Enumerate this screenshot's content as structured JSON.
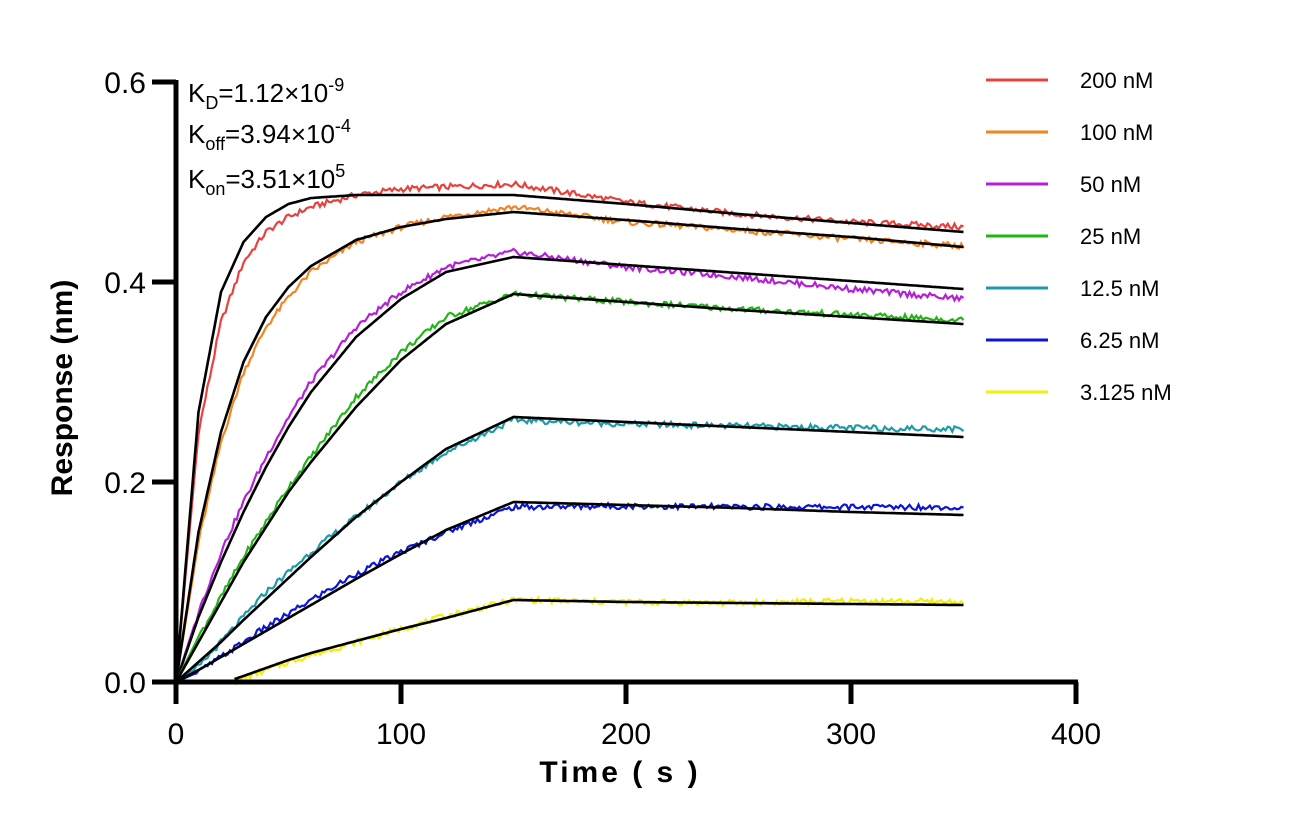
{
  "chart_data": {
    "type": "line",
    "xlabel": "Time ( s )",
    "ylabel": "Response (nm)",
    "xlim": [
      0,
      400
    ],
    "ylim": [
      0,
      0.6
    ],
    "x_ticks": [
      0,
      100,
      200,
      300,
      400
    ],
    "y_ticks": [
      0.0,
      0.2,
      0.4,
      0.6
    ],
    "x_tick_labels": [
      "0",
      "100",
      "200",
      "300",
      "400"
    ],
    "y_tick_labels": [
      "0.0",
      "0.2",
      "0.4",
      "0.6"
    ],
    "grid": false,
    "legend_position": "right",
    "annotations": {
      "kd": {
        "base": "K",
        "sub": "D",
        "value": "=1.12×10",
        "exp": "-9"
      },
      "koff": {
        "base": "K",
        "sub": "off",
        "value": "=3.94×10",
        "exp": "-4"
      },
      "kon": {
        "base": "K",
        "sub": "on",
        "value": "=3.51×10",
        "exp": "5"
      }
    },
    "association_end_s": 150,
    "end_s": 350,
    "fit_line_color": "#000000",
    "series": [
      {
        "name": "200 nM",
        "color": "#e8423f",
        "x": [
          0,
          10,
          20,
          30,
          40,
          50,
          60,
          80,
          100,
          120,
          150,
          200,
          250,
          300,
          350
        ],
        "y": [
          0.0,
          0.25,
          0.36,
          0.42,
          0.45,
          0.465,
          0.475,
          0.487,
          0.493,
          0.495,
          0.498,
          0.48,
          0.468,
          0.46,
          0.455
        ],
        "fit_y": [
          0.0,
          0.27,
          0.39,
          0.44,
          0.465,
          0.478,
          0.484,
          0.487,
          0.487,
          0.487,
          0.487,
          0.478,
          0.468,
          0.459,
          0.45
        ]
      },
      {
        "name": "100 nM",
        "color": "#f28522",
        "x": [
          0,
          10,
          20,
          30,
          40,
          50,
          60,
          80,
          100,
          120,
          150,
          200,
          250,
          300,
          350
        ],
        "y": [
          0.0,
          0.14,
          0.24,
          0.31,
          0.355,
          0.385,
          0.41,
          0.44,
          0.455,
          0.465,
          0.475,
          0.46,
          0.452,
          0.443,
          0.436
        ],
        "fit_y": [
          0.0,
          0.15,
          0.25,
          0.32,
          0.365,
          0.395,
          0.416,
          0.442,
          0.455,
          0.463,
          0.47,
          0.462,
          0.453,
          0.445,
          0.435
        ]
      },
      {
        "name": "50 nM",
        "color": "#b41fd8",
        "x": [
          0,
          10,
          20,
          30,
          40,
          50,
          60,
          80,
          100,
          120,
          150,
          200,
          250,
          300,
          350
        ],
        "y": [
          0.0,
          0.07,
          0.13,
          0.18,
          0.225,
          0.265,
          0.3,
          0.355,
          0.39,
          0.415,
          0.43,
          0.415,
          0.405,
          0.393,
          0.383
        ],
        "fit_y": [
          0.0,
          0.065,
          0.12,
          0.17,
          0.215,
          0.255,
          0.29,
          0.345,
          0.383,
          0.41,
          0.425,
          0.417,
          0.409,
          0.401,
          0.393
        ]
      },
      {
        "name": "25 nM",
        "color": "#22b515",
        "x": [
          0,
          10,
          20,
          30,
          40,
          50,
          60,
          80,
          100,
          120,
          150,
          200,
          250,
          300,
          350
        ],
        "y": [
          0.0,
          0.045,
          0.085,
          0.125,
          0.16,
          0.195,
          0.225,
          0.285,
          0.33,
          0.365,
          0.388,
          0.38,
          0.373,
          0.367,
          0.362
        ],
        "fit_y": [
          0.0,
          0.04,
          0.08,
          0.12,
          0.155,
          0.19,
          0.22,
          0.275,
          0.322,
          0.358,
          0.388,
          0.38,
          0.372,
          0.365,
          0.358
        ]
      },
      {
        "name": "12.5 nM",
        "color": "#1f9aa8",
        "x": [
          0,
          10,
          20,
          30,
          40,
          50,
          60,
          80,
          100,
          120,
          150,
          200,
          250,
          300,
          350
        ],
        "y": [
          0.0,
          0.015,
          0.04,
          0.065,
          0.09,
          0.11,
          0.13,
          0.165,
          0.2,
          0.23,
          0.262,
          0.258,
          0.256,
          0.254,
          0.253
        ],
        "fit_y": [
          0.0,
          0.02,
          0.04,
          0.062,
          0.083,
          0.104,
          0.125,
          0.165,
          0.2,
          0.233,
          0.265,
          0.26,
          0.255,
          0.25,
          0.245
        ]
      },
      {
        "name": "6.25 nM",
        "color": "#0c14d6",
        "x": [
          0,
          10,
          20,
          30,
          40,
          50,
          60,
          80,
          100,
          120,
          150,
          200,
          250,
          300,
          350
        ],
        "y": [
          0.0,
          0.01,
          0.025,
          0.04,
          0.055,
          0.068,
          0.082,
          0.108,
          0.13,
          0.15,
          0.175,
          0.176,
          0.175,
          0.175,
          0.175
        ],
        "fit_y": [
          0.0,
          0.012,
          0.025,
          0.038,
          0.051,
          0.064,
          0.077,
          0.103,
          0.128,
          0.152,
          0.18,
          0.177,
          0.174,
          0.17,
          0.167
        ]
      },
      {
        "name": "3.125 nM",
        "color": "#f2ee0f",
        "x": [
          26,
          30,
          40,
          50,
          60,
          80,
          100,
          120,
          150,
          200,
          250,
          300,
          350
        ],
        "y": [
          0.0,
          0.004,
          0.012,
          0.02,
          0.027,
          0.04,
          0.053,
          0.066,
          0.082,
          0.08,
          0.079,
          0.081,
          0.08
        ],
        "fit_y": [
          0.003,
          0.006,
          0.014,
          0.022,
          0.029,
          0.041,
          0.053,
          0.064,
          0.082,
          0.08,
          0.079,
          0.078,
          0.077
        ]
      }
    ]
  }
}
